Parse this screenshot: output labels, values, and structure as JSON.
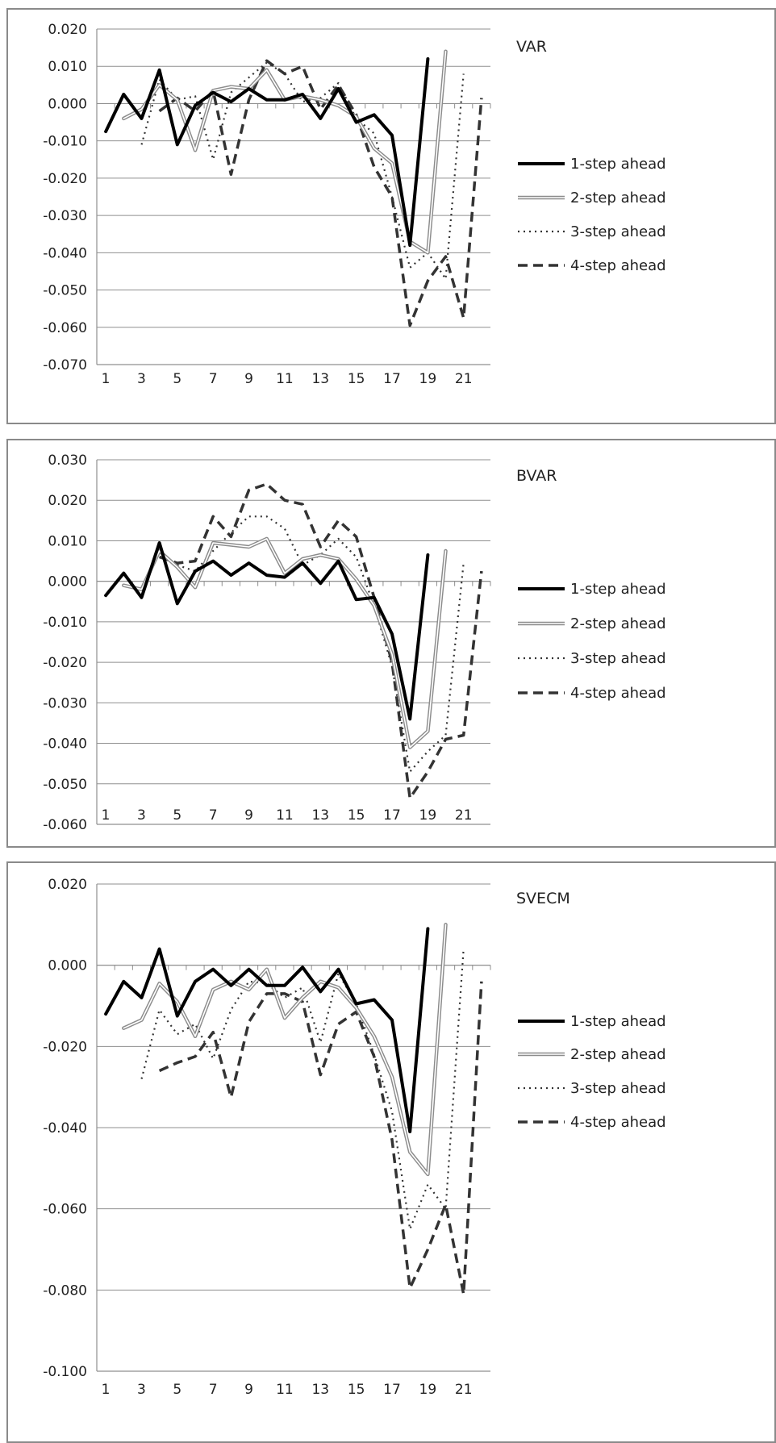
{
  "legend_labels": [
    "1-step ahead",
    "2-step ahead",
    "3-step ahead",
    "4-step ahead"
  ],
  "chart_data": [
    {
      "type": "line",
      "title": "VAR",
      "x": [
        1,
        2,
        3,
        4,
        5,
        6,
        7,
        8,
        9,
        10,
        11,
        12,
        13,
        14,
        15,
        16,
        17,
        18,
        19,
        20,
        21,
        22
      ],
      "x_tick_labels": [
        "1",
        "3",
        "5",
        "7",
        "9",
        "11",
        "13",
        "15",
        "17",
        "19",
        "21"
      ],
      "ylim": [
        -0.07,
        0.02
      ],
      "y_ticks": [
        0.02,
        0.01,
        0.0,
        -0.01,
        -0.02,
        -0.03,
        -0.04,
        -0.05,
        -0.06,
        -0.07
      ],
      "y_tick_labels": [
        "0.020",
        "0.010",
        "0.000",
        "-0.010",
        "-0.020",
        "-0.030",
        "-0.040",
        "-0.050",
        "-0.060",
        "-0.070"
      ],
      "grid": true,
      "legend_position": "right",
      "series": [
        {
          "name": "1-step ahead",
          "values": [
            -0.0075,
            0.0025,
            -0.004,
            0.009,
            -0.011,
            -0.0005,
            0.003,
            0.0005,
            0.004,
            0.001,
            0.001,
            0.0025,
            -0.004,
            0.004,
            -0.005,
            -0.003,
            -0.0085,
            -0.038,
            0.012,
            null,
            null,
            null
          ]
        },
        {
          "name": "2-step ahead",
          "values": [
            null,
            -0.004,
            -0.0015,
            0.005,
            0.001,
            -0.0125,
            0.0035,
            0.0045,
            0.004,
            0.009,
            0.001,
            0.002,
            0.001,
            -0.0005,
            -0.0035,
            -0.012,
            -0.016,
            -0.037,
            -0.04,
            0.014,
            null,
            null
          ]
        },
        {
          "name": "3-step ahead",
          "values": [
            null,
            null,
            -0.011,
            0.0065,
            0.001,
            0.002,
            -0.015,
            0.003,
            0.007,
            0.011,
            0.008,
            0.0005,
            0.0015,
            0.0055,
            -0.004,
            -0.008,
            -0.025,
            -0.044,
            -0.04,
            -0.047,
            0.008,
            null
          ]
        },
        {
          "name": "4-step ahead",
          "values": [
            null,
            null,
            null,
            -0.002,
            0.0015,
            -0.002,
            0.0035,
            -0.019,
            0.001,
            0.0115,
            0.008,
            0.01,
            -0.0015,
            0.005,
            -0.003,
            -0.017,
            -0.025,
            -0.0595,
            -0.0475,
            -0.041,
            -0.0575,
            0.0015
          ]
        }
      ]
    },
    {
      "type": "line",
      "title": "BVAR",
      "x": [
        1,
        2,
        3,
        4,
        5,
        6,
        7,
        8,
        9,
        10,
        11,
        12,
        13,
        14,
        15,
        16,
        17,
        18,
        19,
        20,
        21,
        22
      ],
      "x_tick_labels": [
        "1",
        "3",
        "5",
        "7",
        "9",
        "11",
        "13",
        "15",
        "17",
        "19",
        "21"
      ],
      "ylim": [
        -0.06,
        0.03
      ],
      "y_ticks": [
        0.03,
        0.02,
        0.01,
        0.0,
        -0.01,
        -0.02,
        -0.03,
        -0.04,
        -0.05,
        -0.06
      ],
      "y_tick_labels": [
        "0.030",
        "0.020",
        "0.010",
        "0.000",
        "-0.010",
        "-0.020",
        "-0.030",
        "-0.040",
        "-0.050",
        "-0.060"
      ],
      "grid": true,
      "legend_position": "right",
      "series": [
        {
          "name": "1-step ahead",
          "values": [
            -0.0035,
            0.002,
            -0.004,
            0.0095,
            -0.0055,
            0.0025,
            0.005,
            0.0015,
            0.0045,
            0.0015,
            0.001,
            0.0045,
            -0.0005,
            0.005,
            -0.0045,
            -0.004,
            -0.013,
            -0.034,
            0.0065,
            null,
            null,
            null
          ]
        },
        {
          "name": "2-step ahead",
          "values": [
            null,
            -0.001,
            -0.002,
            0.0075,
            0.0035,
            -0.0015,
            0.0095,
            0.009,
            0.0085,
            0.0105,
            0.002,
            0.0055,
            0.0065,
            0.0055,
            0.0005,
            -0.006,
            -0.018,
            -0.041,
            -0.037,
            0.0075,
            null,
            null
          ]
        },
        {
          "name": "3-step ahead",
          "values": [
            null,
            null,
            -0.002,
            0.007,
            0.004,
            0.0025,
            0.0075,
            0.012,
            0.016,
            0.016,
            0.013,
            0.004,
            0.0065,
            0.0105,
            0.006,
            -0.006,
            -0.021,
            -0.047,
            -0.042,
            -0.038,
            0.0045,
            null
          ]
        },
        {
          "name": "4-step ahead",
          "values": [
            null,
            null,
            null,
            0.006,
            0.0045,
            0.005,
            0.016,
            0.011,
            0.0225,
            0.024,
            0.02,
            0.019,
            0.0085,
            0.015,
            0.011,
            -0.004,
            -0.02,
            -0.0535,
            -0.047,
            -0.039,
            -0.038,
            0.0025
          ]
        }
      ]
    },
    {
      "type": "line",
      "title": "SVECM",
      "x": [
        1,
        2,
        3,
        4,
        5,
        6,
        7,
        8,
        9,
        10,
        11,
        12,
        13,
        14,
        15,
        16,
        17,
        18,
        19,
        20,
        21,
        22
      ],
      "x_tick_labels": [
        "1",
        "3",
        "5",
        "7",
        "9",
        "11",
        "13",
        "15",
        "17",
        "19",
        "21"
      ],
      "ylim": [
        -0.1,
        0.02
      ],
      "y_ticks": [
        0.02,
        0.0,
        -0.02,
        -0.04,
        -0.06,
        -0.08,
        -0.1
      ],
      "y_tick_labels": [
        "0.020",
        "0.000",
        "-0.020",
        "-0.040",
        "-0.060",
        "-0.080",
        "-0.100"
      ],
      "grid": true,
      "legend_position": "right",
      "series": [
        {
          "name": "1-step ahead",
          "values": [
            -0.012,
            -0.004,
            -0.008,
            0.004,
            -0.0125,
            -0.004,
            -0.001,
            -0.005,
            -0.001,
            -0.005,
            -0.005,
            -0.0005,
            -0.0065,
            -0.001,
            -0.0095,
            -0.0085,
            -0.0135,
            -0.041,
            0.009,
            null,
            null,
            null
          ]
        },
        {
          "name": "2-step ahead",
          "values": [
            null,
            -0.0155,
            -0.0135,
            -0.0045,
            -0.009,
            -0.0175,
            -0.006,
            -0.004,
            -0.006,
            -0.001,
            -0.013,
            -0.008,
            -0.004,
            -0.0055,
            -0.0105,
            -0.0175,
            -0.0275,
            -0.046,
            -0.0515,
            0.01,
            null,
            null
          ]
        },
        {
          "name": "3-step ahead",
          "values": [
            null,
            null,
            -0.028,
            -0.011,
            -0.017,
            -0.0145,
            -0.023,
            -0.011,
            -0.004,
            -0.0045,
            -0.008,
            -0.0055,
            -0.019,
            -0.002,
            -0.0095,
            -0.022,
            -0.036,
            -0.065,
            -0.054,
            -0.06,
            0.004,
            null
          ]
        },
        {
          "name": "4-step ahead",
          "values": [
            null,
            null,
            null,
            -0.026,
            -0.024,
            -0.0225,
            -0.0165,
            -0.0325,
            -0.014,
            -0.007,
            -0.007,
            -0.009,
            -0.027,
            -0.0145,
            -0.0115,
            -0.0225,
            -0.043,
            -0.0795,
            -0.07,
            -0.059,
            -0.081,
            -0.004
          ]
        }
      ]
    }
  ]
}
